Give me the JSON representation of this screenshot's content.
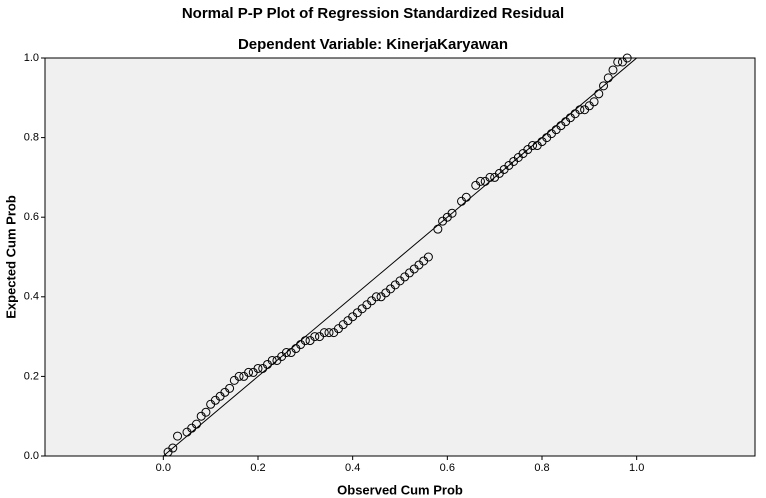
{
  "chart_data": {
    "type": "scatter",
    "title": "Normal P-P Plot of Regression Standardized Residual",
    "subtitle": "Dependent Variable: KinerjaKaryawan",
    "x_label": "Observed Cum Prob",
    "y_label": "Expected Cum Prob",
    "x": [
      0.01,
      0.02,
      0.03,
      0.05,
      0.06,
      0.07,
      0.08,
      0.09,
      0.1,
      0.11,
      0.12,
      0.13,
      0.14,
      0.15,
      0.16,
      0.17,
      0.18,
      0.19,
      0.2,
      0.21,
      0.22,
      0.23,
      0.24,
      0.25,
      0.26,
      0.27,
      0.28,
      0.29,
      0.3,
      0.31,
      0.32,
      0.33,
      0.34,
      0.35,
      0.36,
      0.37,
      0.38,
      0.39,
      0.4,
      0.41,
      0.42,
      0.43,
      0.44,
      0.45,
      0.46,
      0.47,
      0.48,
      0.49,
      0.5,
      0.51,
      0.52,
      0.53,
      0.54,
      0.55,
      0.56,
      0.58,
      0.59,
      0.6,
      0.61,
      0.63,
      0.64,
      0.66,
      0.67,
      0.68,
      0.69,
      0.7,
      0.71,
      0.72,
      0.73,
      0.74,
      0.75,
      0.76,
      0.77,
      0.78,
      0.79,
      0.8,
      0.81,
      0.82,
      0.83,
      0.84,
      0.85,
      0.86,
      0.87,
      0.88,
      0.89,
      0.9,
      0.91,
      0.92,
      0.93,
      0.94,
      0.95,
      0.96,
      0.97,
      0.98
    ],
    "values": [
      0.01,
      0.02,
      0.05,
      0.06,
      0.07,
      0.08,
      0.1,
      0.11,
      0.13,
      0.14,
      0.15,
      0.16,
      0.17,
      0.19,
      0.2,
      0.2,
      0.21,
      0.21,
      0.22,
      0.22,
      0.23,
      0.24,
      0.24,
      0.25,
      0.26,
      0.26,
      0.27,
      0.28,
      0.29,
      0.29,
      0.3,
      0.3,
      0.31,
      0.31,
      0.31,
      0.32,
      0.33,
      0.34,
      0.35,
      0.36,
      0.37,
      0.38,
      0.39,
      0.4,
      0.4,
      0.41,
      0.42,
      0.43,
      0.44,
      0.45,
      0.46,
      0.47,
      0.48,
      0.49,
      0.5,
      0.57,
      0.59,
      0.6,
      0.61,
      0.64,
      0.65,
      0.68,
      0.69,
      0.69,
      0.7,
      0.7,
      0.71,
      0.72,
      0.73,
      0.74,
      0.75,
      0.76,
      0.77,
      0.78,
      0.78,
      0.79,
      0.8,
      0.81,
      0.82,
      0.83,
      0.84,
      0.85,
      0.86,
      0.87,
      0.87,
      0.88,
      0.89,
      0.91,
      0.93,
      0.95,
      0.97,
      0.99,
      0.99,
      1.0
    ],
    "color": "#000000",
    "xlim": [
      -0.25,
      1.25
    ],
    "ylim": [
      0,
      1
    ],
    "xticks": [
      {
        "value": 0,
        "label": "0.0"
      },
      0.2,
      0.4,
      0.6,
      0.8,
      {
        "value": 1,
        "label": "1.0"
      }
    ],
    "yticks": [
      {
        "value": 0,
        "label": "0.0"
      },
      0.2,
      0.4,
      0.6,
      0.8,
      {
        "value": 1,
        "label": "1.0"
      }
    ]
  }
}
